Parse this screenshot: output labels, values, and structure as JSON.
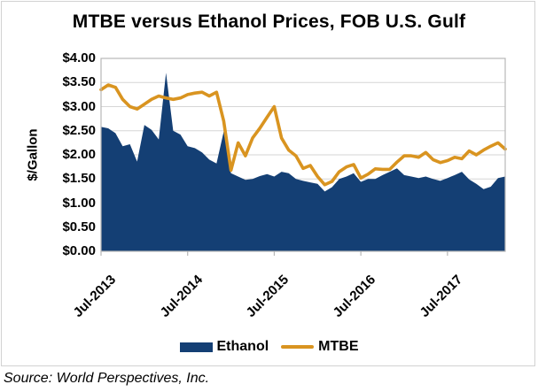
{
  "title": "MTBE versus Ethanol Prices, FOB U.S. Gulf",
  "source_note": "Source: World Perspectives, Inc.",
  "colors": {
    "ethanol_area": "#143F74",
    "mtbe_line": "#D99420",
    "gridline": "#d6d6d6",
    "plot_border": "#b7b7b7",
    "text": "#000000"
  },
  "y_axis": {
    "title": "$/Gallon",
    "tick_labels": [
      "$4.00",
      "$3.50",
      "$3.00",
      "$2.50",
      "$2.00",
      "$1.50",
      "$1.00",
      "$0.50",
      "$0.00"
    ],
    "tick_values": [
      4.0,
      3.5,
      3.0,
      2.5,
      2.0,
      1.5,
      1.0,
      0.5,
      0.0
    ]
  },
  "x_axis": {
    "tick_labels": [
      "Jul-2013",
      "Jul-2014",
      "Jul-2015",
      "Jul-2016",
      "Jul-2017"
    ],
    "tick_month_index": [
      0,
      12,
      24,
      36,
      48
    ]
  },
  "legend": {
    "items": [
      {
        "label": "Ethanol",
        "type": "area",
        "color": "#143F74"
      },
      {
        "label": "MTBE",
        "type": "line",
        "color": "#D99420"
      }
    ],
    "position": "bottom"
  },
  "chart_data": {
    "type": "area+line combo, monthly sampled from weekly series",
    "title": "MTBE versus Ethanol Prices, FOB U.S. Gulf",
    "xlabel": "",
    "ylabel": "$/Gallon",
    "ylim": [
      0,
      4.0
    ],
    "grid": true,
    "legend_position": "bottom",
    "x": [
      "Jul-2013",
      "Aug-2013",
      "Sep-2013",
      "Oct-2013",
      "Nov-2013",
      "Dec-2013",
      "Jan-2014",
      "Feb-2014",
      "Mar-2014",
      "Apr-2014",
      "May-2014",
      "Jun-2014",
      "Jul-2014",
      "Aug-2014",
      "Sep-2014",
      "Oct-2014",
      "Nov-2014",
      "Dec-2014",
      "Jan-2015",
      "Feb-2015",
      "Mar-2015",
      "Apr-2015",
      "May-2015",
      "Jun-2015",
      "Jul-2015",
      "Aug-2015",
      "Sep-2015",
      "Oct-2015",
      "Nov-2015",
      "Dec-2015",
      "Jan-2016",
      "Feb-2016",
      "Mar-2016",
      "Apr-2016",
      "May-2016",
      "Jun-2016",
      "Jul-2016",
      "Aug-2016",
      "Sep-2016",
      "Oct-2016",
      "Nov-2016",
      "Dec-2016",
      "Jan-2017",
      "Feb-2017",
      "Mar-2017",
      "Apr-2017",
      "May-2017",
      "Jun-2017",
      "Jul-2017",
      "Aug-2017",
      "Sep-2017",
      "Oct-2017",
      "Nov-2017",
      "Dec-2017",
      "Jan-2018",
      "Feb-2018",
      "Mar-2018"
    ],
    "series": [
      {
        "name": "Ethanol",
        "type": "area",
        "color": "#143F74",
        "unit": "$/gallon",
        "values": [
          2.58,
          2.55,
          2.45,
          2.18,
          2.22,
          1.86,
          2.62,
          2.52,
          2.32,
          3.7,
          2.5,
          2.42,
          2.18,
          2.14,
          2.05,
          1.9,
          1.82,
          2.48,
          1.62,
          1.55,
          1.48,
          1.5,
          1.56,
          1.6,
          1.55,
          1.65,
          1.62,
          1.5,
          1.46,
          1.43,
          1.4,
          1.24,
          1.33,
          1.5,
          1.55,
          1.62,
          1.44,
          1.5,
          1.5,
          1.58,
          1.65,
          1.72,
          1.58,
          1.55,
          1.52,
          1.55,
          1.5,
          1.46,
          1.52,
          1.58,
          1.65,
          1.49,
          1.4,
          1.29,
          1.34,
          1.52,
          1.55
        ]
      },
      {
        "name": "MTBE",
        "type": "line",
        "color": "#D99420",
        "unit": "$/gallon",
        "values": [
          3.35,
          3.45,
          3.4,
          3.15,
          3.0,
          2.95,
          3.05,
          3.15,
          3.22,
          3.18,
          3.15,
          3.18,
          3.25,
          3.28,
          3.3,
          3.22,
          3.3,
          2.7,
          1.68,
          2.25,
          1.98,
          2.35,
          2.55,
          2.78,
          3.0,
          2.35,
          2.1,
          1.98,
          1.72,
          1.78,
          1.55,
          1.38,
          1.45,
          1.65,
          1.75,
          1.8,
          1.52,
          1.6,
          1.71,
          1.7,
          1.7,
          1.85,
          1.98,
          1.98,
          1.95,
          2.05,
          1.9,
          1.84,
          1.88,
          1.95,
          1.92,
          2.08,
          2.0,
          2.1,
          2.18,
          2.25,
          2.12
        ]
      }
    ]
  }
}
